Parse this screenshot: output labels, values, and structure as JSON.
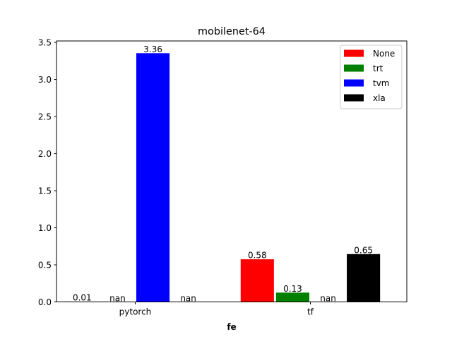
{
  "chart_data": {
    "type": "bar",
    "title": "mobilenet-64",
    "xlabel": "fe",
    "ylabel": "",
    "categories": [
      "pytorch",
      "tf"
    ],
    "series": [
      {
        "name": "None",
        "color": "#ff0000",
        "values": [
          0.01,
          0.58
        ],
        "labels": [
          "0.01",
          "0.58"
        ]
      },
      {
        "name": "trt",
        "color": "#008000",
        "values": [
          null,
          0.13
        ],
        "labels": [
          "nan",
          "0.13"
        ]
      },
      {
        "name": "tvm",
        "color": "#0000ff",
        "values": [
          3.36,
          null
        ],
        "labels": [
          "3.36",
          "nan"
        ]
      },
      {
        "name": "xla",
        "color": "#000000",
        "values": [
          null,
          0.65
        ],
        "labels": [
          "nan",
          "0.65"
        ]
      }
    ],
    "ylim": [
      0,
      3.52
    ],
    "yticks": [
      0.0,
      0.5,
      1.0,
      1.5,
      2.0,
      2.5,
      3.0,
      3.5
    ],
    "ytick_labels": [
      "0.0",
      "0.5",
      "1.0",
      "1.5",
      "2.0",
      "2.5",
      "3.0",
      "3.5"
    ],
    "grid": false,
    "legend_position": "top-right"
  }
}
